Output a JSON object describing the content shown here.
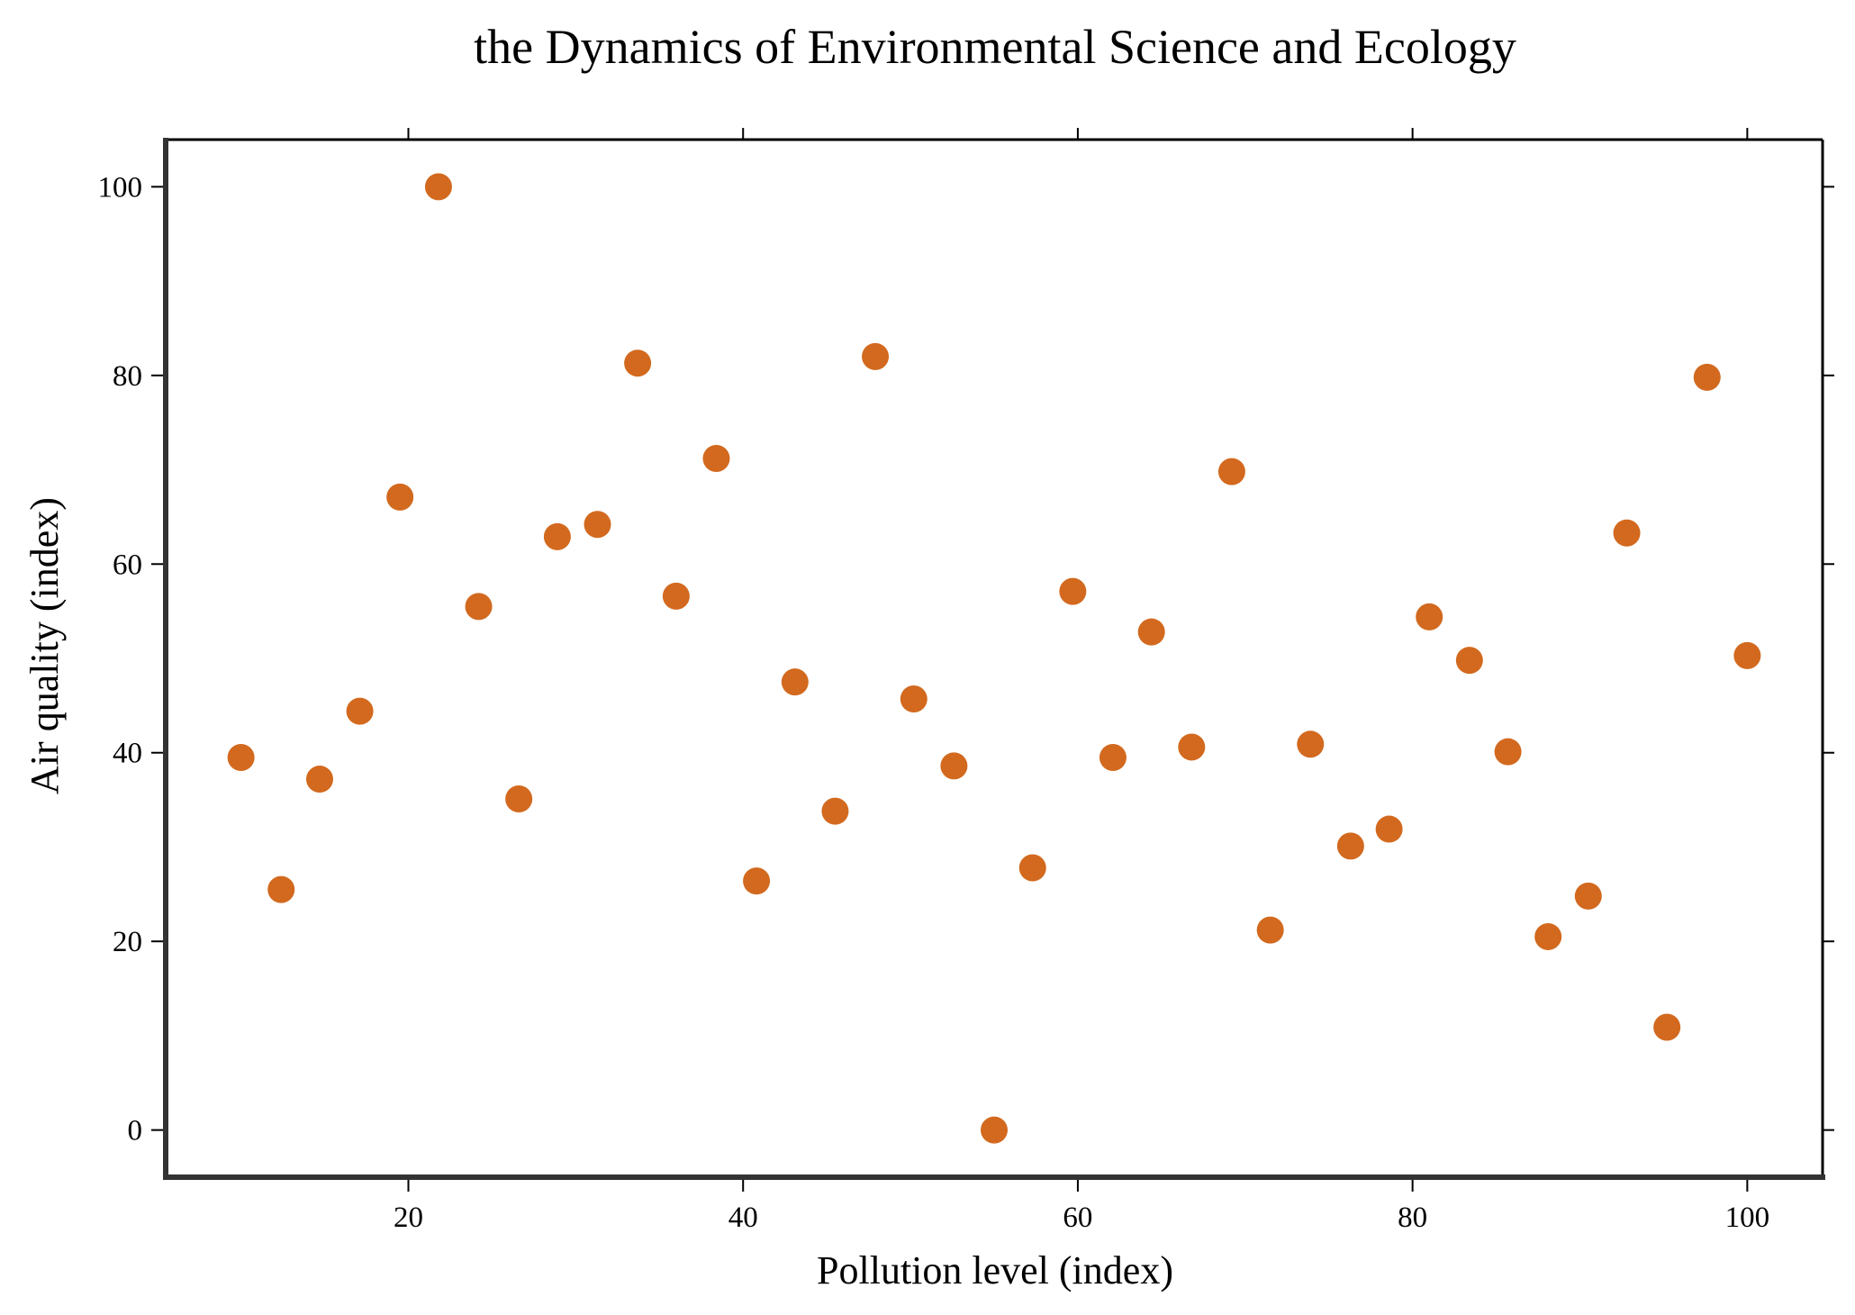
{
  "chart_data": {
    "type": "scatter",
    "title": "the Dynamics of Environmental Science and Ecology",
    "xlabel": "Pollution level (index)",
    "ylabel": "Air quality (index)",
    "xlim": [
      5.5,
      104.5
    ],
    "ylim": [
      -5,
      105
    ],
    "xticks": [
      20,
      40,
      60,
      80,
      100
    ],
    "yticks": [
      0,
      20,
      40,
      60,
      80,
      100
    ],
    "grid": false,
    "legend": "none",
    "colors": {
      "marker": "#D2691E",
      "axis": "#333333",
      "text": "#000000"
    },
    "series": [
      {
        "x": [
          10.0,
          12.4,
          14.7,
          17.1,
          19.5,
          21.8,
          24.2,
          26.6,
          28.9,
          31.3,
          33.7,
          36.0,
          38.4,
          40.8,
          43.1,
          45.5,
          47.9,
          50.2,
          52.6,
          55.0,
          57.3,
          59.7,
          62.1,
          64.4,
          66.8,
          69.2,
          71.5,
          73.9,
          76.3,
          78.6,
          81.0,
          83.4,
          85.7,
          88.1,
          90.5,
          92.8,
          95.2,
          97.6,
          100.0
        ],
        "y": [
          39.5,
          25.5,
          37.2,
          44.4,
          67.1,
          100.0,
          55.5,
          35.1,
          62.9,
          64.2,
          81.3,
          56.6,
          71.2,
          26.4,
          47.5,
          33.8,
          82.0,
          45.7,
          38.6,
          0.0,
          27.8,
          57.1,
          39.5,
          52.8,
          40.6,
          69.8,
          21.2,
          40.9,
          30.1,
          31.9,
          54.4,
          49.8,
          40.1,
          20.5,
          24.8,
          63.3,
          10.9,
          79.8,
          50.3
        ]
      }
    ]
  }
}
